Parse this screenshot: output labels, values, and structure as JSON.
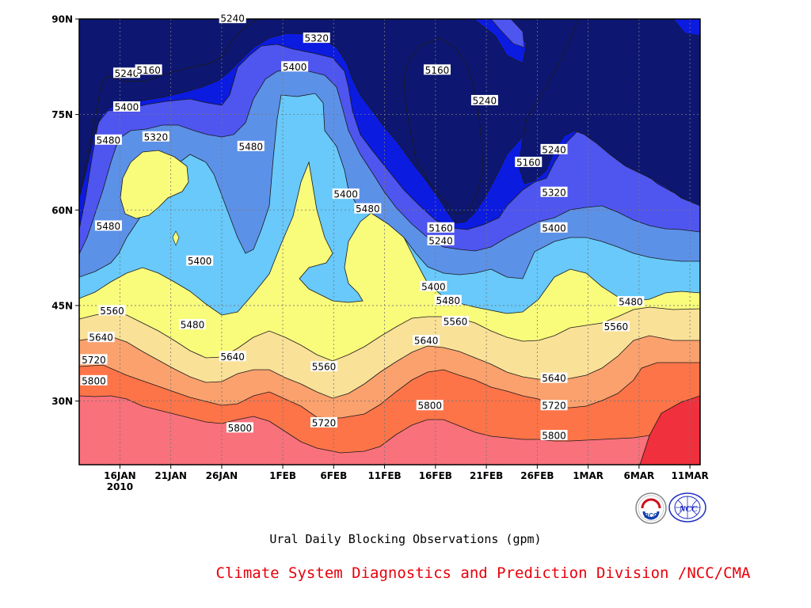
{
  "chart_data": {
    "type": "heatmap",
    "subtitle": "Ural Daily Blocking Observations (gpm)",
    "credit": "Climate System Diagnostics and Prediction Division /NCC/CMA",
    "logos": [
      "BCC",
      "NCC"
    ],
    "x_ticks": [
      "16JAN\n2010",
      "21JAN",
      "26JAN",
      "1FEB",
      "6FEB",
      "11FEB",
      "16FEB",
      "21FEB",
      "26FEB",
      "1MAR",
      "6MAR",
      "11MAR"
    ],
    "y_ticks": [
      "90N",
      "75N",
      "60N",
      "45N",
      "30N"
    ],
    "xlim": [
      "2010-01-12",
      "2010-03-14"
    ],
    "ylim": [
      20,
      90
    ],
    "contour_levels": [
      5160,
      5240,
      5320,
      5400,
      5480,
      5560,
      5640,
      5720,
      5800
    ],
    "fill_colors": [
      "#0d1771",
      "#0b1be0",
      "#4f55ef",
      "#5c91e8",
      "#68c9fa",
      "#f9fb7b",
      "#fae198",
      "#fba16d",
      "#fd7448",
      "#f8717b",
      "#f0303c"
    ],
    "grid": true,
    "contour_labels": [
      {
        "v": "5240",
        "lat": 90.1,
        "day": 42
      },
      {
        "v": "5320",
        "lat": 87.0,
        "day": 65
      },
      {
        "v": "5240",
        "lat": 81.5,
        "day": 13
      },
      {
        "v": "5160",
        "lat": 82.0,
        "day": 19
      },
      {
        "v": "5400",
        "lat": 82.5,
        "day": 59
      },
      {
        "v": "5160",
        "lat": 82.0,
        "day": 98
      },
      {
        "v": "5240",
        "lat": 77.2,
        "day": 111
      },
      {
        "v": "5400",
        "lat": 76.2,
        "day": 13
      },
      {
        "v": "5320",
        "lat": 71.5,
        "day": 21
      },
      {
        "v": "5480",
        "lat": 71.0,
        "day": 8
      },
      {
        "v": "5480",
        "lat": 70.0,
        "day": 47
      },
      {
        "v": "5160",
        "lat": 67.5,
        "day": 123
      },
      {
        "v": "5240",
        "lat": 69.5,
        "day": 130
      },
      {
        "v": "5400",
        "lat": 62.5,
        "day": 73
      },
      {
        "v": "5320",
        "lat": 62.8,
        "day": 130
      },
      {
        "v": "5480",
        "lat": 60.2,
        "day": 79
      },
      {
        "v": "5480",
        "lat": 57.5,
        "day": 8
      },
      {
        "v": "5160",
        "lat": 57.2,
        "day": 99
      },
      {
        "v": "5400",
        "lat": 57.2,
        "day": 130
      },
      {
        "v": "5240",
        "lat": 55.2,
        "day": 99
      },
      {
        "v": "5400",
        "lat": 52.0,
        "day": 33
      },
      {
        "v": "5400",
        "lat": 48.0,
        "day": 97
      },
      {
        "v": "5480",
        "lat": 45.8,
        "day": 101
      },
      {
        "v": "5480",
        "lat": 45.6,
        "day": 151
      },
      {
        "v": "5560",
        "lat": 44.2,
        "day": 9
      },
      {
        "v": "5560",
        "lat": 42.5,
        "day": 103
      },
      {
        "v": "5480",
        "lat": 42.0,
        "day": 31
      },
      {
        "v": "5560",
        "lat": 41.7,
        "day": 147
      },
      {
        "v": "5640",
        "lat": 40.0,
        "day": 6
      },
      {
        "v": "5640",
        "lat": 39.5,
        "day": 95
      },
      {
        "v": "5720",
        "lat": 36.5,
        "day": 4
      },
      {
        "v": "5640",
        "lat": 37.0,
        "day": 42
      },
      {
        "v": "5560",
        "lat": 35.4,
        "day": 67
      },
      {
        "v": "5640",
        "lat": 33.6,
        "day": 130
      },
      {
        "v": "5800",
        "lat": 33.2,
        "day": 4
      },
      {
        "v": "5800",
        "lat": 29.3,
        "day": 96
      },
      {
        "v": "5720",
        "lat": 29.3,
        "day": 130
      },
      {
        "v": "5720",
        "lat": 26.6,
        "day": 67
      },
      {
        "v": "5800",
        "lat": 25.8,
        "day": 44
      },
      {
        "v": "5800",
        "lat": 24.6,
        "day": 130
      }
    ]
  }
}
